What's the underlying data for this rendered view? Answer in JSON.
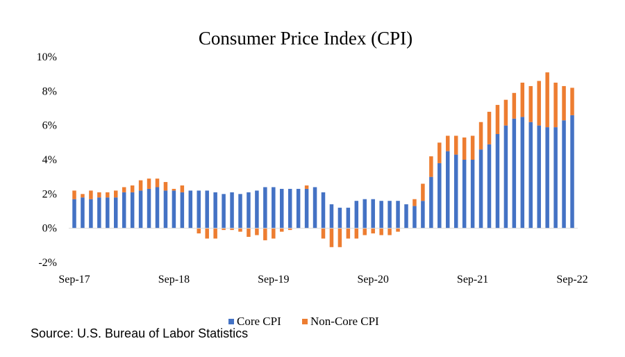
{
  "chart_data": {
    "type": "bar",
    "stacked": true,
    "title": "Consumer Price Index (CPI)",
    "xlabel": "",
    "ylabel": "",
    "ylim": [
      -2,
      10
    ],
    "y_ticks": [
      "-2%",
      "0%",
      "2%",
      "4%",
      "6%",
      "8%",
      "10%"
    ],
    "x_tick_labels": [
      "Sep-17",
      "Sep-18",
      "Sep-19",
      "Sep-20",
      "Sep-21",
      "Sep-22"
    ],
    "legend_position": "bottom",
    "grid": false,
    "categories": [
      "Sep-17",
      "Oct-17",
      "Nov-17",
      "Dec-17",
      "Jan-18",
      "Feb-18",
      "Mar-18",
      "Apr-18",
      "May-18",
      "Jun-18",
      "Jul-18",
      "Aug-18",
      "Sep-18",
      "Oct-18",
      "Nov-18",
      "Dec-18",
      "Jan-19",
      "Feb-19",
      "Mar-19",
      "Apr-19",
      "May-19",
      "Jun-19",
      "Jul-19",
      "Aug-19",
      "Sep-19",
      "Oct-19",
      "Nov-19",
      "Dec-19",
      "Jan-20",
      "Feb-20",
      "Mar-20",
      "Apr-20",
      "May-20",
      "Jun-20",
      "Jul-20",
      "Aug-20",
      "Sep-20",
      "Oct-20",
      "Nov-20",
      "Dec-20",
      "Jan-21",
      "Feb-21",
      "Mar-21",
      "Apr-21",
      "May-21",
      "Jun-21",
      "Jul-21",
      "Aug-21",
      "Sep-21",
      "Oct-21",
      "Nov-21",
      "Dec-21",
      "Jan-22",
      "Feb-22",
      "Mar-22",
      "Apr-22",
      "May-22",
      "Jun-22",
      "Jul-22",
      "Aug-22",
      "Sep-22"
    ],
    "series": [
      {
        "name": "Core CPI",
        "color": "#4472C4",
        "values": [
          1.7,
          1.8,
          1.7,
          1.8,
          1.8,
          1.8,
          2.1,
          2.1,
          2.2,
          2.3,
          2.4,
          2.2,
          2.2,
          2.1,
          2.2,
          2.2,
          2.2,
          2.1,
          2.0,
          2.1,
          2.0,
          2.1,
          2.2,
          2.4,
          2.4,
          2.3,
          2.3,
          2.3,
          2.3,
          2.4,
          2.1,
          1.4,
          1.2,
          1.2,
          1.6,
          1.7,
          1.7,
          1.6,
          1.6,
          1.6,
          1.4,
          1.3,
          1.6,
          3.0,
          3.8,
          4.5,
          4.3,
          4.0,
          4.0,
          4.6,
          4.9,
          5.5,
          6.0,
          6.4,
          6.5,
          6.2,
          6.0,
          5.9,
          5.9,
          6.3,
          6.6
        ]
      },
      {
        "name": "Non-Core CPI",
        "color": "#ED7D31",
        "values": [
          0.5,
          0.2,
          0.5,
          0.3,
          0.3,
          0.4,
          0.3,
          0.4,
          0.6,
          0.6,
          0.5,
          0.5,
          0.1,
          0.4,
          0.0,
          -0.3,
          -0.6,
          -0.6,
          -0.1,
          -0.1,
          -0.2,
          -0.5,
          -0.4,
          -0.7,
          -0.6,
          -0.2,
          -0.1,
          0.0,
          0.2,
          0.0,
          -0.6,
          -1.1,
          -1.1,
          -0.6,
          -0.6,
          -0.4,
          -0.3,
          -0.4,
          -0.4,
          -0.2,
          0.0,
          0.4,
          1.0,
          1.2,
          1.2,
          0.9,
          1.1,
          1.3,
          1.4,
          1.6,
          1.9,
          1.7,
          1.5,
          1.5,
          2.0,
          2.1,
          2.6,
          3.2,
          2.6,
          2.0,
          1.6
        ]
      }
    ]
  },
  "source": "Source: U.S. Bureau of Labor Statistics"
}
